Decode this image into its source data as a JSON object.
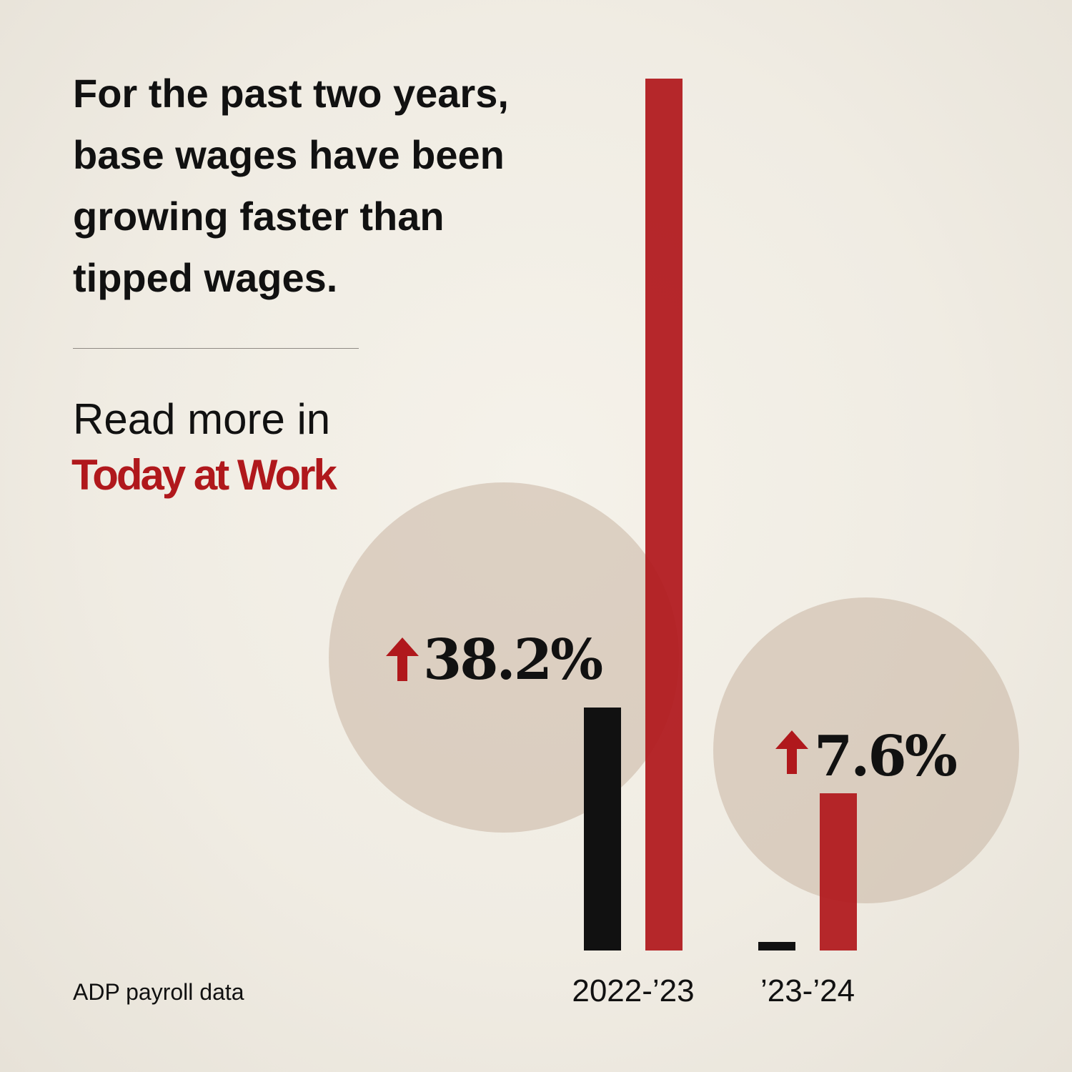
{
  "headline": "For the past two years, base wages have been growing faster than tipped wages.",
  "read_more": "Read more in",
  "brand": "Today at Work",
  "source": "ADP payroll data",
  "colors": {
    "accent": "#b0181c",
    "dark": "#111111",
    "circle": "#c9b5a3",
    "background": "#f1ede4"
  },
  "chart_data": {
    "type": "bar",
    "categories": [
      "2022-’23",
      "’23-’24"
    ],
    "series": [
      {
        "values": [
          34,
          1.2
        ],
        "color": "#111111"
      },
      {
        "values": [
          122,
          22
        ],
        "color": "#b0181c"
      }
    ],
    "annotations": [
      {
        "category": "2022-’23",
        "text": "38.2%",
        "icon": "up-arrow-icon"
      },
      {
        "category": "’23-’24",
        "text": "7.6%",
        "icon": "up-arrow-icon"
      }
    ],
    "title": "For the past two years, base wages have been growing faster than tipped wages.",
    "xlabel": "",
    "ylabel": "",
    "ylim": [
      0,
      123
    ],
    "grid": false,
    "legend": "none"
  }
}
